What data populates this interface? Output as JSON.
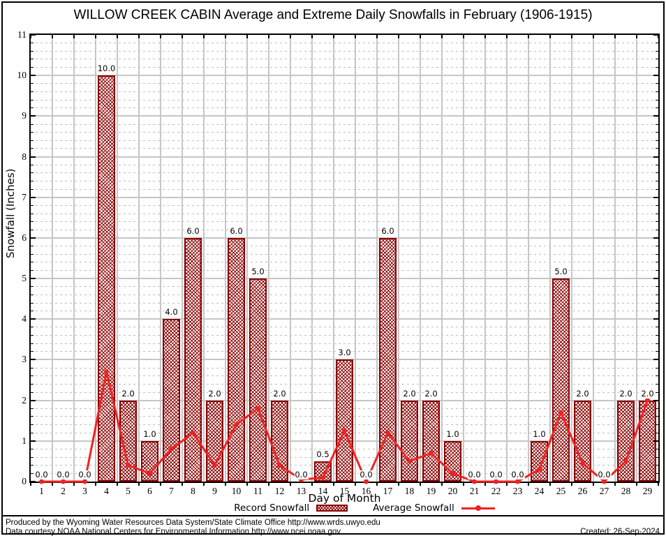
{
  "chart_data": {
    "type": "bar",
    "title": "WILLOW CREEK CABIN Average and Extreme Daily Snowfalls in February (1906-1915)",
    "xlabel": "Day of Month",
    "ylabel": "Snowfall (Inches)",
    "ylim": [
      0,
      11
    ],
    "y_major_step": 1,
    "y_minor_step": 0.2,
    "grid": "major solid gray + minor dashed, horizontal minors every 0.2, vertical majors at day boundaries",
    "legend_position": "bottom-center",
    "categories": [
      1,
      2,
      3,
      4,
      5,
      6,
      7,
      8,
      9,
      10,
      11,
      12,
      13,
      14,
      15,
      16,
      17,
      18,
      19,
      20,
      21,
      22,
      23,
      24,
      25,
      26,
      27,
      28,
      29
    ],
    "series": [
      {
        "name": "Record Snowfall",
        "type": "bar",
        "color": "#8B0000",
        "fill": "crosshatch",
        "values": [
          0,
          0,
          0,
          10,
          2,
          1,
          4,
          6,
          2,
          6,
          5,
          2,
          0,
          0.5,
          3,
          0,
          6,
          2,
          2,
          1,
          0,
          0,
          0,
          1,
          5,
          2,
          0,
          2,
          2
        ],
        "labels": [
          "0.0",
          "0.0",
          "0.0",
          "10.0",
          "2.0",
          "1.0",
          "4.0",
          "6.0",
          "2.0",
          "6.0",
          "5.0",
          "2.0",
          "0.0",
          "0.5",
          "3.0",
          "0.0",
          "6.0",
          "2.0",
          "2.0",
          "1.0",
          "0.0",
          "0.0",
          "0.0",
          "1.0",
          "5.0",
          "2.0",
          "0.0",
          "2.0",
          "2.0"
        ]
      },
      {
        "name": "Average Snowfall",
        "type": "line",
        "color": "#EE2222",
        "marker": "circle",
        "values": [
          0,
          0,
          0,
          2.7,
          0.4,
          0.2,
          0.8,
          1.2,
          0.4,
          1.4,
          1.8,
          0.4,
          0.05,
          0.1,
          1.25,
          0,
          1.2,
          0.5,
          0.7,
          0.2,
          0,
          0,
          0,
          0.3,
          1.7,
          0.45,
          0,
          0.5,
          2.0
        ]
      }
    ]
  },
  "footer": {
    "line1": "Produced by the Wyoming Water Resources Data System/State Climate Office http://www.wrds.uwyo.edu",
    "line2": "Data courtesy NOAA National Centers for Environmental Information http://www.ncei.noaa.gov",
    "created": "Created: 26-Sep-2024"
  },
  "colors": {
    "bar_border": "#8B0000",
    "bar_hatch": "#8B0000",
    "line": "#EE2222",
    "grid_major": "#C6C6C6",
    "grid_minor": "#BCBCBC",
    "axis": "#000000",
    "background": "#FFFFFF"
  }
}
